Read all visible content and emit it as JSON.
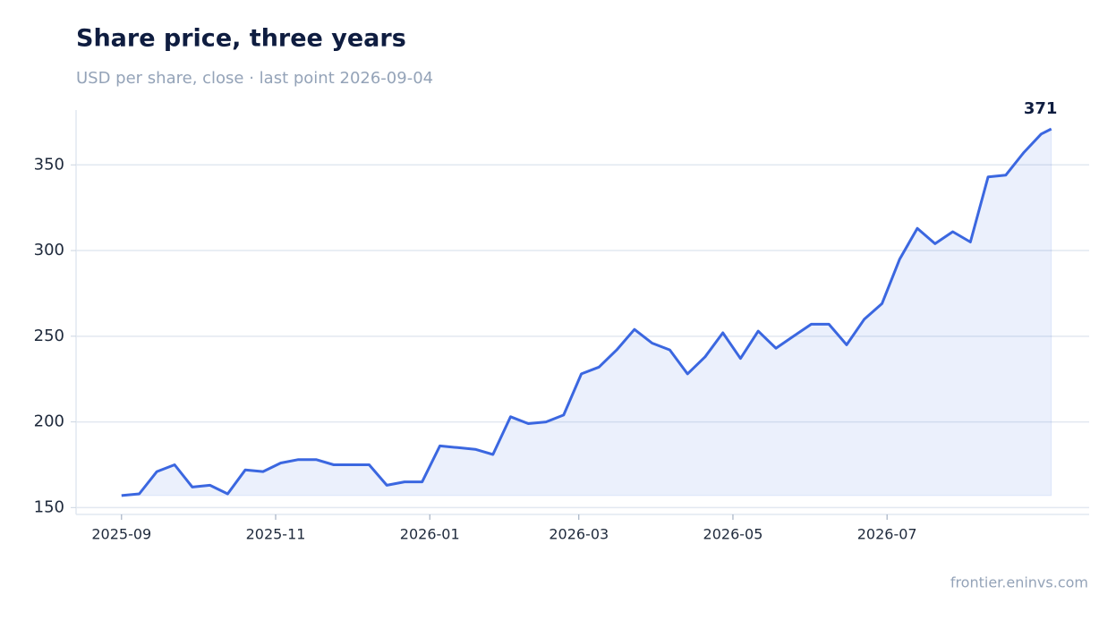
{
  "chart_data": {
    "type": "line",
    "title": "Share price, three years",
    "subtitle": "USD per share, close · last point 2026-09-04",
    "source": "frontier.eninvs.com",
    "end_label": "371",
    "x": [
      "2025-09-01",
      "2025-09-08",
      "2025-09-15",
      "2025-09-22",
      "2025-09-29",
      "2025-10-06",
      "2025-10-13",
      "2025-10-20",
      "2025-10-27",
      "2025-11-03",
      "2025-11-10",
      "2025-11-17",
      "2025-11-24",
      "2025-12-01",
      "2025-12-08",
      "2025-12-15",
      "2025-12-22",
      "2025-12-29",
      "2026-01-05",
      "2026-01-12",
      "2026-01-19",
      "2026-01-26",
      "2026-02-02",
      "2026-02-09",
      "2026-02-16",
      "2026-02-23",
      "2026-03-02",
      "2026-03-09",
      "2026-03-16",
      "2026-03-23",
      "2026-03-30",
      "2026-04-06",
      "2026-04-13",
      "2026-04-20",
      "2026-04-27",
      "2026-05-04",
      "2026-05-11",
      "2026-05-18",
      "2026-05-25",
      "2026-06-01",
      "2026-06-08",
      "2026-06-15",
      "2026-06-22",
      "2026-06-29",
      "2026-07-06",
      "2026-07-13",
      "2026-07-20",
      "2026-07-27",
      "2026-08-03",
      "2026-08-10",
      "2026-08-17",
      "2026-08-24",
      "2026-08-31",
      "2026-09-04"
    ],
    "series": [
      {
        "name": "Share price",
        "color": "#3b67e0",
        "values": [
          157,
          158,
          171,
          175,
          162,
          163,
          158,
          172,
          171,
          176,
          178,
          178,
          175,
          175,
          175,
          163,
          165,
          165,
          186,
          185,
          184,
          181,
          203,
          199,
          200,
          204,
          228,
          232,
          242,
          254,
          246,
          242,
          228,
          238,
          252,
          237,
          253,
          243,
          250,
          257,
          257,
          245,
          260,
          269,
          295,
          313,
          304,
          311,
          305,
          343,
          344,
          357,
          368,
          371
        ]
      }
    ],
    "xlim": [
      "2025-08-14",
      "2026-09-19"
    ],
    "xticks": [
      {
        "value": "2025-09-01",
        "label": "2025-09"
      },
      {
        "value": "2025-11-01",
        "label": "2025-11"
      },
      {
        "value": "2026-01-01",
        "label": "2026-01"
      },
      {
        "value": "2026-03-01",
        "label": "2026-03"
      },
      {
        "value": "2026-05-01",
        "label": "2026-05"
      },
      {
        "value": "2026-07-01",
        "label": "2026-07"
      }
    ],
    "ylim": [
      146,
      382
    ],
    "yticks": [
      150,
      200,
      250,
      300,
      350
    ],
    "grid": true
  }
}
